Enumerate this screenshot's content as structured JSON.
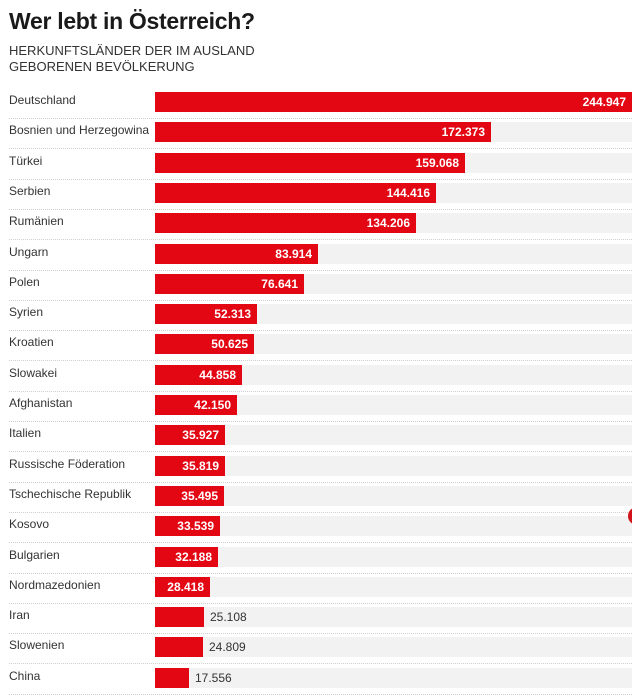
{
  "title": "Wer lebt in Österreich?",
  "subtitle": "HERKUNFTSLÄNDER DER IM AUSLAND GEBORENEN BEVÖLKERUNG",
  "colors": {
    "bar": "#e30613",
    "track": "#f2f2f2"
  },
  "chart_data": {
    "type": "bar",
    "orientation": "horizontal",
    "title": "Wer lebt in Österreich?",
    "subtitle": "HERKUNFTSLÄNDER DER IM AUSLAND GEBORENEN BEVÖLKERUNG",
    "xlim": [
      0,
      244947
    ],
    "grid": false,
    "categories": [
      "Deutschland",
      "Bosnien und Herzegowina",
      "Türkei",
      "Serbien",
      "Rumänien",
      "Ungarn",
      "Polen",
      "Syrien",
      "Kroatien",
      "Slowakei",
      "Afghanistan",
      "Italien",
      "Russische Föderation",
      "Tschechische Republik",
      "Kosovo",
      "Bulgarien",
      "Nordmazedonien",
      "Iran",
      "Slowenien",
      "China"
    ],
    "values": [
      244947,
      172373,
      159068,
      144416,
      134206,
      83914,
      76641,
      52313,
      50625,
      44858,
      42150,
      35927,
      35819,
      35495,
      33539,
      32188,
      28418,
      25108,
      24809,
      17556
    ],
    "value_labels": [
      "244.947",
      "172.373",
      "159.068",
      "144.416",
      "134.206",
      "83.914",
      "76.641",
      "52.313",
      "50.625",
      "44.858",
      "42.150",
      "35.927",
      "35.819",
      "35.495",
      "33.539",
      "32.188",
      "28.418",
      "25.108",
      "24.809",
      "17.556"
    ]
  }
}
